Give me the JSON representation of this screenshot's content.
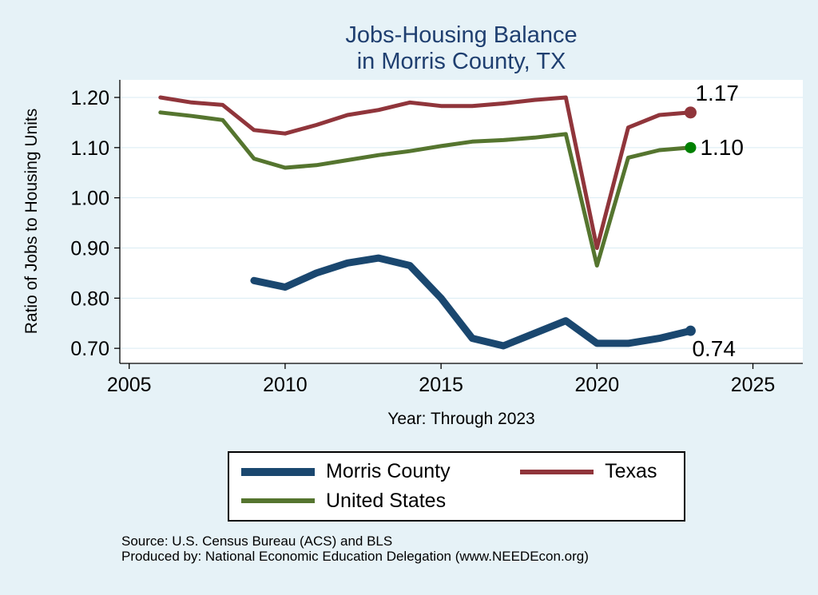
{
  "page": {
    "background": "#e6f2f7"
  },
  "chart_data": {
    "type": "line",
    "title": "Jobs-Housing Balance",
    "subtitle": "in Morris County, TX",
    "title_color": "#1f3f70",
    "xlabel": "Year: Through 2023",
    "ylabel": "Ratio of Jobs to Housing Units",
    "xlim": [
      2004.7,
      2026.6
    ],
    "ylim": [
      0.67,
      1.235
    ],
    "xticks": [
      2005,
      2010,
      2015,
      2020,
      2025
    ],
    "yticks": [
      0.7,
      0.8,
      0.9,
      1.0,
      1.1,
      1.2
    ],
    "ytick_labels": [
      "0.70",
      "0.80",
      "0.90",
      "1.00",
      "1.10",
      "1.20"
    ],
    "grid": true,
    "grid_color": "#d9ebf3",
    "plot_background": "#ffffff",
    "axis_color": "#000000",
    "legend_position": "bottom-center",
    "series": [
      {
        "name": "Morris County",
        "color": "#1a476f",
        "line_width": 9,
        "marker_color": "#1a476f",
        "marker_size": 6.5,
        "end_label": "0.74",
        "end_label_pos": "below",
        "x": [
          2009,
          2010,
          2011,
          2012,
          2013,
          2014,
          2015,
          2016,
          2017,
          2018,
          2019,
          2020,
          2021,
          2022,
          2023
        ],
        "y": [
          0.835,
          0.822,
          0.85,
          0.87,
          0.88,
          0.865,
          0.8,
          0.72,
          0.705,
          0.73,
          0.755,
          0.71,
          0.71,
          0.72,
          0.735
        ]
      },
      {
        "name": "Texas",
        "color": "#90353b",
        "line_width": 5,
        "marker_color": "#90353b",
        "marker_size": 7.5,
        "end_label": "1.17",
        "end_label_pos": "above",
        "x": [
          2006,
          2007,
          2008,
          2009,
          2010,
          2011,
          2012,
          2013,
          2014,
          2015,
          2016,
          2017,
          2018,
          2019,
          2020,
          2021,
          2022,
          2023
        ],
        "y": [
          1.2,
          1.19,
          1.185,
          1.135,
          1.128,
          1.145,
          1.165,
          1.175,
          1.19,
          1.183,
          1.183,
          1.188,
          1.195,
          1.2,
          0.9,
          1.14,
          1.165,
          1.17
        ]
      },
      {
        "name": "United States",
        "color": "#55752f",
        "line_width": 5,
        "marker_color": "#008000",
        "marker_size": 7,
        "end_label": "1.10",
        "end_label_pos": "right",
        "x": [
          2006,
          2007,
          2008,
          2009,
          2010,
          2011,
          2012,
          2013,
          2014,
          2015,
          2016,
          2017,
          2018,
          2019,
          2020,
          2021,
          2022,
          2023
        ],
        "y": [
          1.17,
          1.163,
          1.155,
          1.078,
          1.06,
          1.065,
          1.075,
          1.085,
          1.093,
          1.103,
          1.112,
          1.115,
          1.12,
          1.127,
          0.865,
          1.08,
          1.095,
          1.1
        ]
      }
    ]
  },
  "notes": {
    "source": "Source: U.S. Census Bureau (ACS) and BLS",
    "produced_by": "Produced by: National Economic Education Delegation (www.NEEDEcon.org)"
  }
}
